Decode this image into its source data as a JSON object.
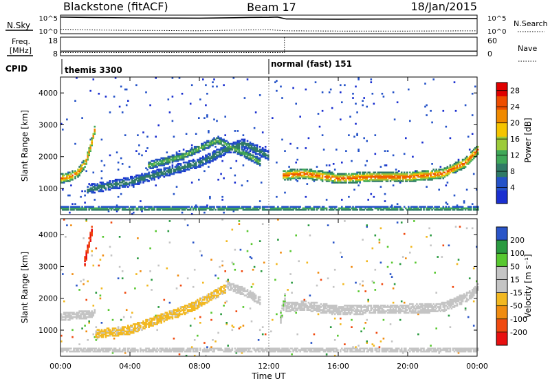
{
  "header": {
    "station": "Blackstone (fitACF)",
    "beam": "Beam 17",
    "date": "18/Jan/2015"
  },
  "left_labels": {
    "nsky": "N.Sky",
    "freq": "Freq.",
    "freq_unit": "[MHz]",
    "cpid": "CPID"
  },
  "right_labels": {
    "nsearch": "N.Search",
    "nave": "Nave"
  },
  "cpid_segments": [
    {
      "label": "themis 3300",
      "start_hour": 0
    },
    {
      "label": "normal (fast) 151",
      "start_hour": 12
    }
  ],
  "colors": {
    "power_scale": [
      "#1a2fd0",
      "#2452c8",
      "#2f7a66",
      "#3fa858",
      "#9ccb3a",
      "#f5c400",
      "#f08a00",
      "#ee4d00",
      "#e00000"
    ],
    "velocity_scale": [
      "#e81010",
      "#f04a10",
      "#f08c10",
      "#f2b820",
      "#c4c4c4",
      "#c4c4c4",
      "#58c830",
      "#2a9a40",
      "#2a55c8",
      "#1a22b8"
    ],
    "ground_scatter": "#c4c4c4"
  },
  "chart_data": [
    {
      "type": "line",
      "panel": "noise",
      "x_axis": "hours",
      "xlim": [
        0,
        24
      ],
      "y_ticks_left": [
        "10^5",
        "10^0"
      ],
      "y_ticks_right": [
        "10^5",
        "10^0"
      ],
      "series": [
        {
          "name": "N.Sky",
          "x": [
            0,
            2,
            4,
            6,
            8,
            10,
            11,
            12,
            12.5,
            13,
            16,
            20,
            24
          ],
          "y": [
            30000,
            22000,
            18000,
            16000,
            15000,
            20000,
            24000,
            26000,
            30000,
            9000,
            8000,
            9000,
            12000
          ]
        },
        {
          "name": "N.Search",
          "x": [
            0,
            2,
            4,
            6,
            8,
            10,
            12,
            13,
            16,
            20,
            24
          ],
          "y": [
            15,
            10,
            8,
            7,
            6,
            9,
            12,
            6,
            5,
            5,
            6
          ]
        }
      ]
    },
    {
      "type": "line",
      "panel": "frequency",
      "x_axis": "hours",
      "xlim": [
        0,
        24
      ],
      "y_ticks_left": [
        "18",
        "8"
      ],
      "y_ticks_right": [
        "60",
        "0"
      ],
      "series": [
        {
          "name": "Freq.",
          "x": [
            0,
            24
          ],
          "y": [
            10.5,
            10.5
          ]
        },
        {
          "name": "Nave",
          "x": [
            0,
            12.9,
            12.9,
            24
          ],
          "y": [
            10,
            10,
            60,
            60
          ]
        }
      ]
    },
    {
      "type": "heatmap",
      "panel": "power",
      "ylabel": "Slant Range [km]",
      "xlim": [
        0,
        24
      ],
      "ylim": [
        180,
        4500
      ],
      "y_ticks": [
        "1000",
        "2000",
        "3000",
        "4000"
      ],
      "colorbar_label": "Power [dB]",
      "colorbar_ticks": [
        "4",
        "8",
        "12",
        "16",
        "20",
        "24",
        "28"
      ],
      "colorbar_range": [
        0,
        30
      ],
      "features": [
        {
          "hours": [
            0,
            0.5,
            1.0,
            1.4,
            1.7,
            2.0
          ],
          "range_km": [
            1300,
            1350,
            1500,
            1800,
            2300,
            3000
          ],
          "width_km": 300,
          "peak_db": 24
        },
        {
          "hours": [
            1.5,
            4,
            6,
            8,
            9.5,
            10.5,
            12
          ],
          "range_km": [
            950,
            1200,
            1500,
            1800,
            2200,
            2400,
            2000
          ],
          "width_km": 300,
          "peak_db": 10
        },
        {
          "hours": [
            5,
            7,
            9,
            10.5,
            11.5
          ],
          "range_km": [
            1700,
            2000,
            2500,
            2100,
            1800
          ],
          "width_km": 250,
          "peak_db": 14
        },
        {
          "hours": [
            12.8,
            14,
            16,
            18,
            20,
            22,
            23.3,
            24
          ],
          "range_km": [
            1400,
            1450,
            1300,
            1350,
            1350,
            1450,
            1800,
            2200
          ],
          "width_km": 320,
          "peak_db": 26
        },
        {
          "hours": [
            0,
            24
          ],
          "range_km": [
            350,
            350
          ],
          "width_km": 120,
          "peak_db": 12
        }
      ]
    },
    {
      "type": "heatmap",
      "panel": "velocity",
      "ylabel": "Slant Range [km]",
      "xlabel": "Time UT",
      "xlim": [
        0,
        24
      ],
      "ylim": [
        180,
        4500
      ],
      "x_ticks": [
        "00:00",
        "04:00",
        "08:00",
        "12:00",
        "16:00",
        "20:00",
        "00:00"
      ],
      "y_ticks": [
        "1000",
        "2000",
        "3000",
        "4000"
      ],
      "colorbar_label": "Velocity [m s⁻¹]",
      "colorbar_ticks": [
        "-200",
        "-100",
        "-50",
        "-15",
        "15",
        "50",
        "100",
        "200"
      ],
      "colorbar_range": [
        -250,
        250
      ],
      "features": [
        {
          "hours": [
            0,
            1.0,
            2.0
          ],
          "range_km": [
            1400,
            1450,
            1500
          ],
          "width_km": 250,
          "velocity": 0
        },
        {
          "hours": [
            1.3,
            1.8
          ],
          "range_km": [
            3000,
            4200
          ],
          "width_km": 300,
          "velocity": -200
        },
        {
          "hours": [
            2,
            4,
            6,
            7.5,
            8.5,
            9.5
          ],
          "range_km": [
            850,
            1000,
            1400,
            1700,
            2000,
            2300
          ],
          "width_km": 280,
          "velocity": -60
        },
        {
          "hours": [
            9.5,
            10.5,
            11.5
          ],
          "range_km": [
            2400,
            2200,
            1900
          ],
          "width_km": 250,
          "velocity": 0
        },
        {
          "hours": [
            12.6,
            12.9
          ],
          "range_km": [
            1300,
            2000
          ],
          "width_km": 400,
          "velocity": 40
        },
        {
          "hours": [
            12.9,
            14,
            16,
            18,
            20,
            22,
            23.3,
            24
          ],
          "range_km": [
            1700,
            1750,
            1600,
            1650,
            1650,
            1700,
            2000,
            2300
          ],
          "width_km": 300,
          "velocity": 0
        },
        {
          "hours": [
            0,
            24
          ],
          "range_km": [
            350,
            350
          ],
          "width_km": 120,
          "velocity": -30
        }
      ]
    }
  ]
}
